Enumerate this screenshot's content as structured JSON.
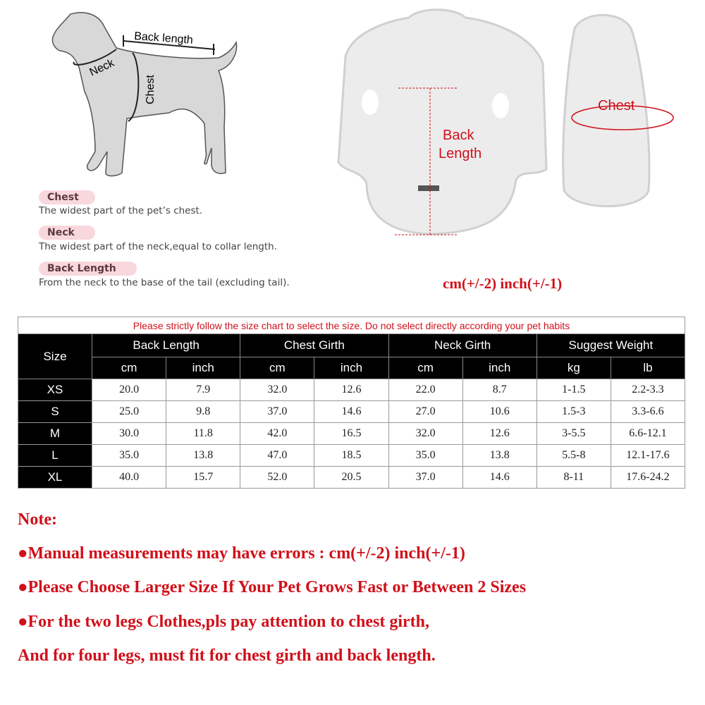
{
  "diagram": {
    "back_length_label": "Back length",
    "neck_label": "Neck",
    "chest_label": "Chest"
  },
  "definitions": [
    {
      "term": "Chest",
      "text": "The widest part of the pet’s chest."
    },
    {
      "term": "Neck",
      "text": "The widest part of the neck,equal to collar length."
    },
    {
      "term": "Back Length",
      "text": "From the neck to the base of the tail (excluding tail)."
    }
  ],
  "product": {
    "back_length_label_1": "Back",
    "back_length_label_2": "Length",
    "chest_label": "Chest",
    "tolerance": "cm(+/-2)  inch(+/-1)"
  },
  "accent_color": "#d0101a",
  "table": {
    "warning": "Please strictly follow the size chart to select the size. Do not select directly according your pet habits",
    "size_header": "Size",
    "groups": [
      "Back Length",
      "Chest Girth",
      "Neck Girth",
      "Suggest Weight"
    ],
    "units": [
      "cm",
      "inch",
      "cm",
      "inch",
      "cm",
      "inch",
      "kg",
      "lb"
    ],
    "rows": [
      {
        "size": "XS",
        "values": [
          "20.0",
          "7.9",
          "32.0",
          "12.6",
          "22.0",
          "8.7",
          "1-1.5",
          "2.2-3.3"
        ]
      },
      {
        "size": "S",
        "values": [
          "25.0",
          "9.8",
          "37.0",
          "14.6",
          "27.0",
          "10.6",
          "1.5-3",
          "3.3-6.6"
        ]
      },
      {
        "size": "M",
        "values": [
          "30.0",
          "11.8",
          "42.0",
          "16.5",
          "32.0",
          "12.6",
          "3-5.5",
          "6.6-12.1"
        ]
      },
      {
        "size": "L",
        "values": [
          "35.0",
          "13.8",
          "47.0",
          "18.5",
          "35.0",
          "13.8",
          "5.5-8",
          "12.1-17.6"
        ]
      },
      {
        "size": "XL",
        "values": [
          "40.0",
          "15.7",
          "52.0",
          "20.5",
          "37.0",
          "14.6",
          "8-11",
          "17.6-24.2"
        ]
      }
    ]
  },
  "notes": {
    "title": "Note:",
    "lines": [
      "●Manual measurements may have errors : cm(+/-2)  inch(+/-1)",
      "●Please Choose Larger Size If Your Pet Grows Fast or Between 2 Sizes",
      "●For the two legs Clothes,pls pay attention to chest girth,",
      "And for four legs, must fit for chest girth and back length."
    ]
  }
}
